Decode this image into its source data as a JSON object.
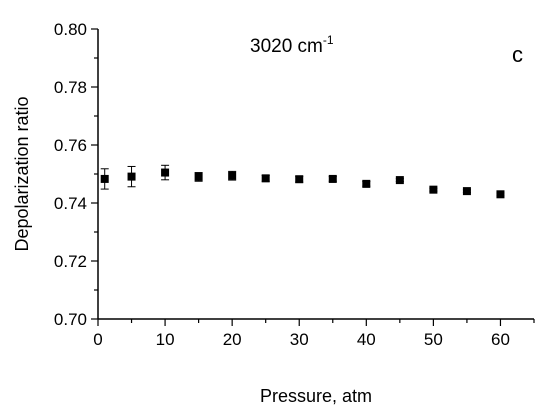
{
  "chart_data": {
    "type": "scatter",
    "title": "",
    "xlabel": "Pressure, atm",
    "ylabel": "Depolarization ratio",
    "xlim": [
      0,
      65
    ],
    "ylim": [
      0.7,
      0.8
    ],
    "xticks": [
      "0",
      "10",
      "20",
      "30",
      "40",
      "50",
      "60"
    ],
    "yticks": [
      "0.70",
      "0.72",
      "0.74",
      "0.76",
      "0.78",
      "0.80"
    ],
    "annotation": {
      "text": "3020 cm",
      "superscript": "-1"
    },
    "panel_label": "c",
    "marker_color": "#000000",
    "grid": false,
    "series": [
      {
        "x": [
          1,
          5,
          10,
          15,
          20,
          25,
          30,
          35,
          40,
          45,
          50,
          55,
          60
        ],
        "y": [
          0.7483,
          0.7491,
          0.7505,
          0.749,
          0.7494,
          0.7485,
          0.7482,
          0.7483,
          0.7466,
          0.7479,
          0.7446,
          0.7441,
          0.743
        ],
        "err": [
          0.0035,
          0.0035,
          0.0025,
          0.0015,
          0.0015,
          0.001,
          0.001,
          0.0008,
          0.0008,
          0.0005,
          0.0005,
          0.0005,
          0.0005
        ]
      }
    ]
  }
}
